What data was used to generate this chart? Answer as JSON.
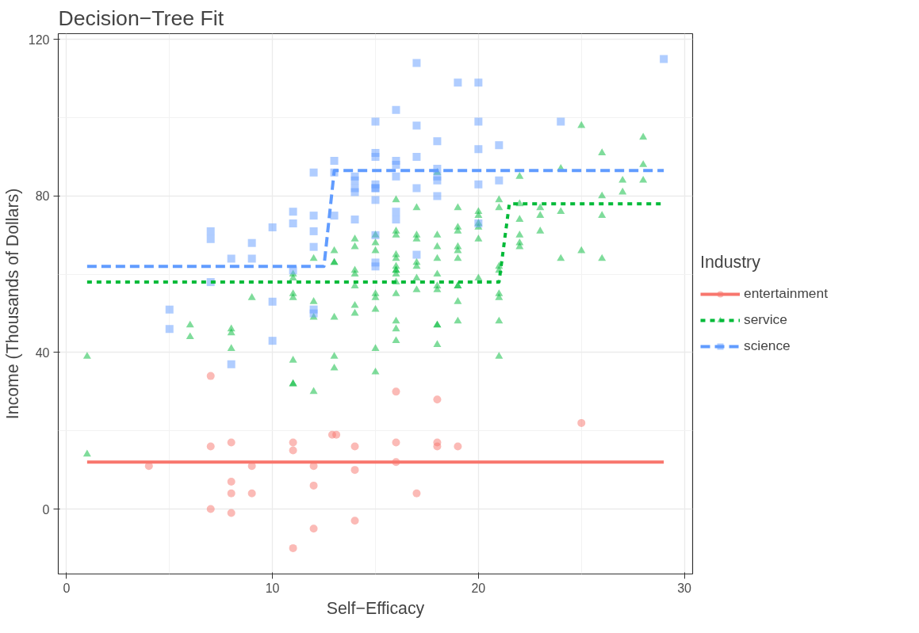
{
  "chart_data": {
    "type": "scatter",
    "title": "Decision−Tree Fit",
    "xlabel": "Self−Efficacy",
    "ylabel": "Income (Thousands of Dollars)",
    "legend_title": "Industry",
    "xlim": [
      -0.4,
      30.4
    ],
    "ylim": [
      -16.6,
      121.5
    ],
    "xticks": [
      0,
      10,
      20,
      30
    ],
    "yticks": [
      0,
      40,
      80,
      120
    ],
    "grid": true,
    "legend": "right",
    "series": [
      {
        "marker": "circle",
        "color": "#f8766d",
        "x": [
          7,
          7,
          8,
          4,
          8,
          8,
          9,
          9,
          7,
          8,
          11,
          11,
          12.9,
          13.1,
          12,
          12,
          14,
          14,
          14,
          12,
          11,
          16,
          16,
          16,
          17,
          18,
          18,
          18,
          19,
          25
        ],
        "values": [
          34,
          16,
          17,
          11,
          7,
          4,
          4,
          11,
          0,
          -1,
          17,
          15,
          19,
          19,
          11,
          6,
          16,
          10,
          -3,
          -5,
          -10,
          30,
          17,
          12,
          4,
          28,
          17,
          16,
          16,
          22
        ]
      },
      {
        "marker": "triangle",
        "color": "#00ba38",
        "x": [
          1,
          1,
          6,
          6,
          8,
          8,
          8,
          9,
          11,
          11,
          11,
          11,
          11,
          11,
          11,
          12,
          12,
          12,
          12,
          13,
          13,
          13,
          13,
          13,
          13,
          14,
          14,
          14,
          14,
          14,
          14,
          14,
          15,
          15,
          15,
          15,
          15,
          15,
          15,
          15,
          16,
          16,
          16,
          16,
          16,
          16,
          16,
          16,
          16,
          16,
          16,
          16,
          16,
          16,
          17,
          17,
          17,
          17,
          17,
          17,
          17,
          18,
          18,
          18,
          18,
          18,
          18,
          18,
          18,
          18,
          18,
          19,
          19,
          19,
          19,
          19,
          19,
          19,
          19,
          19,
          19,
          20,
          20,
          20,
          20,
          20,
          20,
          21,
          21,
          21,
          21,
          21,
          21,
          21,
          21,
          22,
          22,
          22,
          22,
          22,
          22,
          23,
          23,
          23,
          24,
          24,
          24,
          25,
          25,
          26,
          26,
          26,
          26,
          27,
          27,
          28,
          28,
          28
        ],
        "values": [
          39,
          14,
          47,
          44,
          46,
          45,
          41,
          54,
          60,
          59,
          55,
          54,
          38,
          32,
          32,
          64,
          53,
          49,
          30,
          66,
          63,
          63,
          49,
          39,
          36,
          69,
          67,
          61,
          60,
          57,
          52,
          50,
          70,
          68,
          66,
          55,
          54,
          51,
          41,
          35,
          79,
          71,
          70,
          65,
          64,
          62,
          61,
          61,
          60,
          58,
          55,
          48,
          46,
          43,
          77,
          70,
          69,
          63,
          62,
          59,
          56,
          86,
          70,
          67,
          64,
          60,
          57,
          56,
          47,
          47,
          42,
          77,
          72,
          71,
          67,
          66,
          64,
          57,
          57,
          53,
          48,
          76,
          75,
          73,
          72,
          69,
          59,
          79,
          77,
          62,
          61,
          55,
          54,
          48,
          39,
          85,
          78,
          74,
          70,
          68,
          67,
          77,
          75,
          71,
          87,
          76,
          64,
          98,
          66,
          91,
          80,
          75,
          64,
          84,
          81,
          95,
          88,
          84
        ]
      },
      {
        "marker": "square",
        "color": "#619cff",
        "x": [
          5,
          5,
          7,
          7,
          7,
          8,
          8,
          9,
          9,
          10,
          10,
          10,
          11,
          11,
          11,
          12,
          12,
          12,
          12,
          12,
          12,
          13,
          13,
          13,
          14,
          14,
          14,
          14,
          14,
          15,
          15,
          15,
          15,
          15,
          15,
          15,
          15,
          15,
          15,
          16,
          16,
          16,
          16,
          16,
          16,
          17,
          17,
          17,
          17,
          17,
          18,
          18,
          18,
          18,
          18,
          19,
          20,
          20,
          20,
          20,
          20,
          21,
          21,
          24,
          29
        ],
        "values": [
          51,
          46,
          71,
          69,
          58,
          64,
          37,
          68,
          64,
          72,
          53,
          43,
          76,
          73,
          61,
          86,
          75,
          71,
          67,
          51,
          50,
          89,
          86,
          75,
          85,
          84,
          82,
          81,
          74,
          99,
          91,
          90,
          83,
          82,
          82,
          79,
          70,
          63,
          62,
          102,
          89,
          88,
          85,
          76,
          74,
          114,
          98,
          90,
          82,
          65,
          94,
          87,
          85,
          84,
          80,
          109,
          109,
          99,
          92,
          83,
          73,
          93,
          84,
          99,
          115
        ]
      },
      {
        "type": "line",
        "name": "entertainment",
        "color": "#f8766d",
        "line_style": "solid",
        "marker": "none",
        "x": [
          1,
          29
        ],
        "values": [
          12,
          12
        ]
      },
      {
        "type": "line",
        "name": "service",
        "color": "#00ba38",
        "line_style": "dotted",
        "marker": "none",
        "x": [
          1,
          21,
          21.5,
          29
        ],
        "values": [
          58,
          58,
          78,
          78
        ]
      },
      {
        "type": "line",
        "name": "science",
        "color": "#619cff",
        "line_style": "dashed",
        "marker": "none",
        "x": [
          1,
          12.5,
          13,
          29
        ],
        "values": [
          62,
          62,
          86.5,
          86.5
        ]
      }
    ]
  }
}
